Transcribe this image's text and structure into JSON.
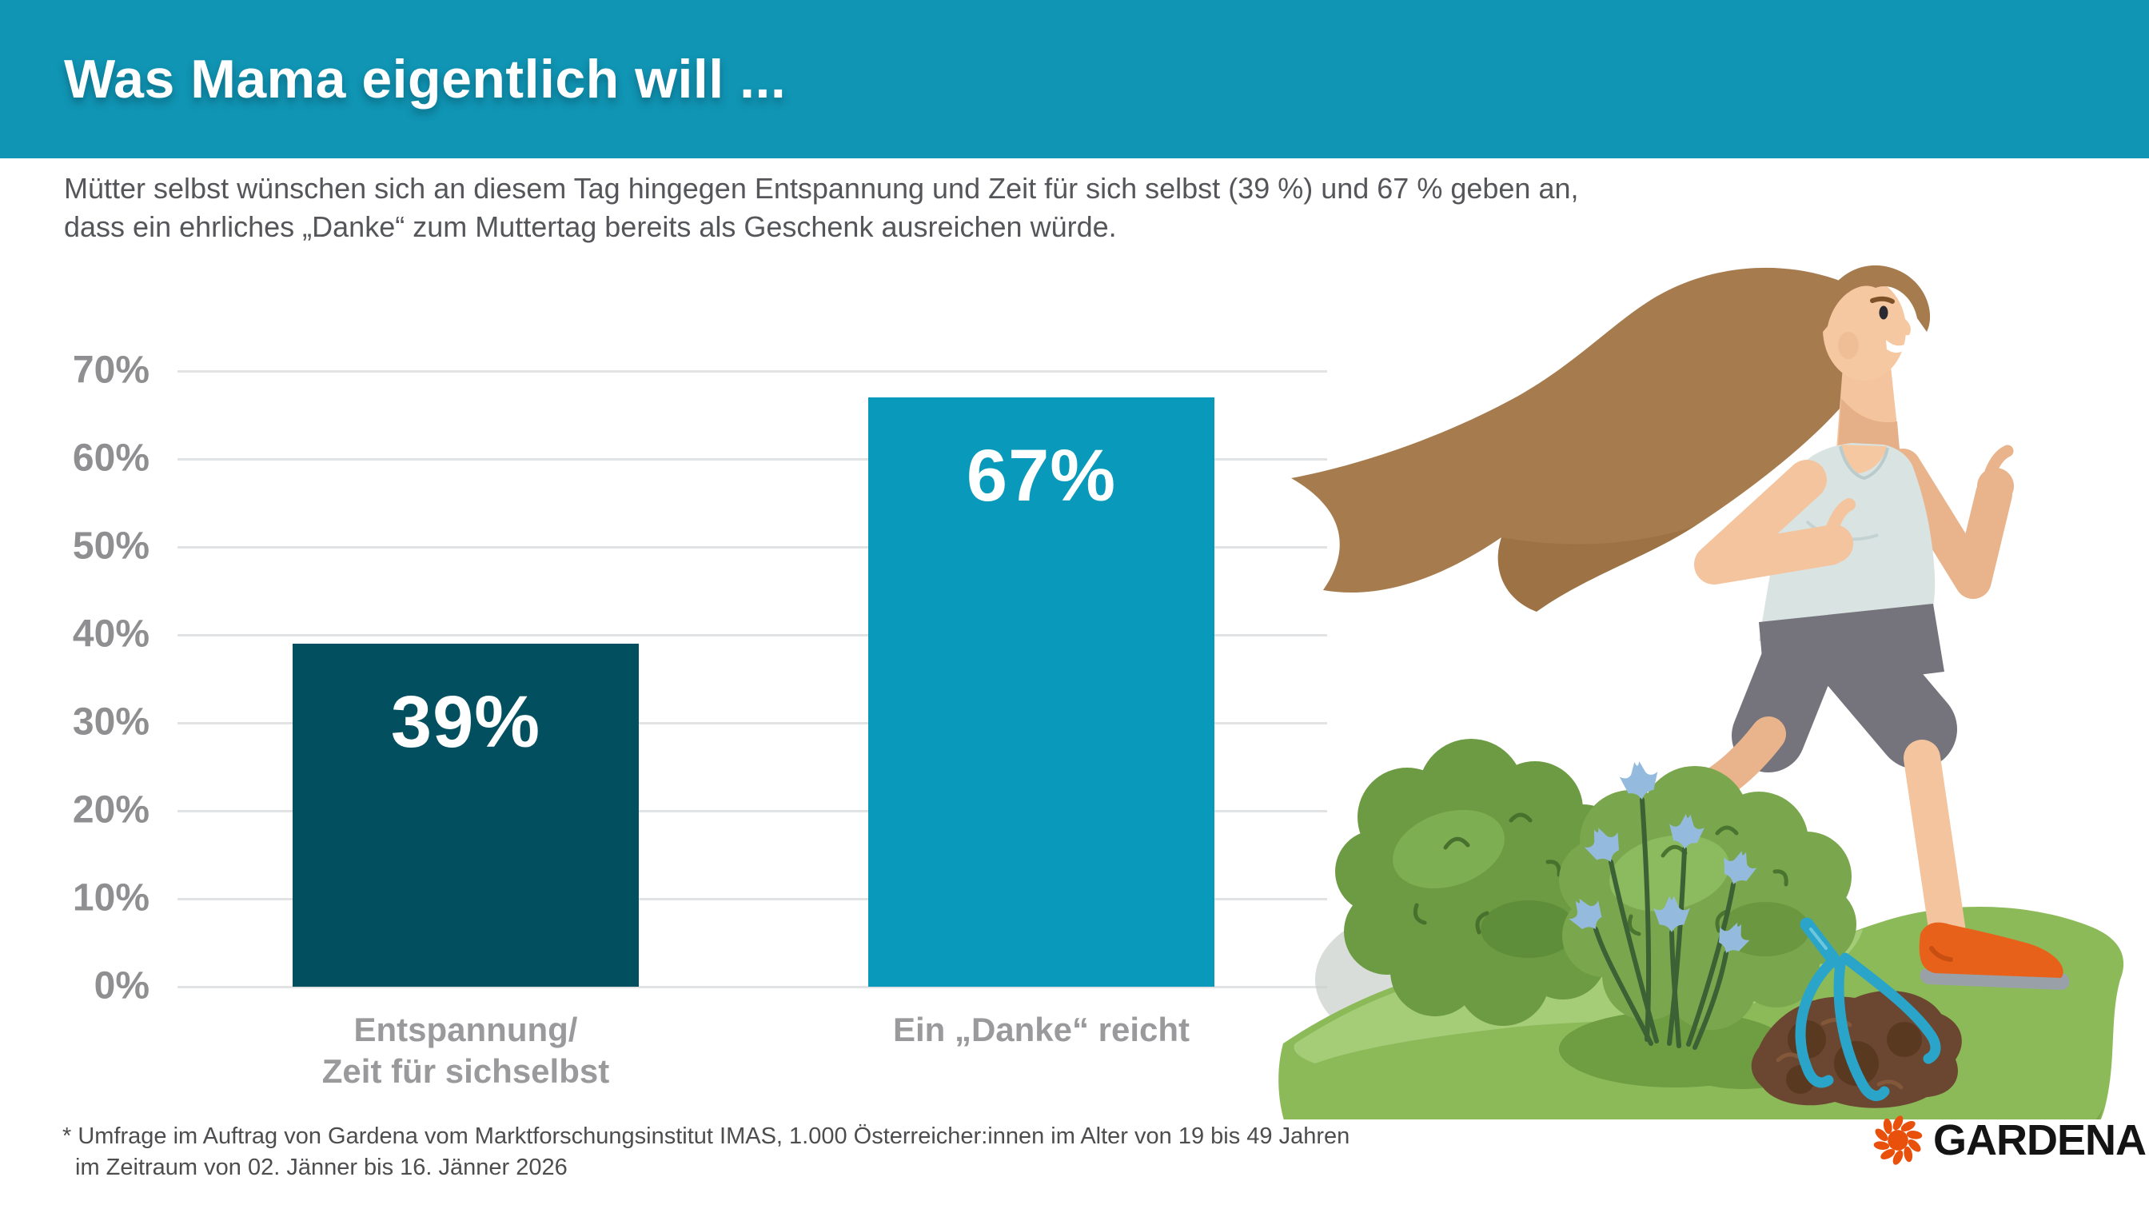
{
  "header": {
    "title": "Was Mama eigentlich will ...",
    "background_color": "#1095B4"
  },
  "intro": {
    "lines": [
      "Mütter selbst wünschen sich an diesem Tag hingegen Entspannung und Zeit für sich selbst (39 %) und 67 % geben an,",
      "dass ein ehrliches „Danke“ zum Muttertag bereits als Geschenk ausreichen würde."
    ]
  },
  "chart_data": {
    "type": "bar",
    "categories": [
      "Entspannung/ Zeit für sichselbst",
      "Ein „Danke“ reicht"
    ],
    "category_lines": [
      [
        "Entspannung/",
        "Zeit für sichselbst"
      ],
      [
        "Ein „Danke“ reicht",
        ""
      ]
    ],
    "values": [
      39,
      67
    ],
    "value_labels": [
      "39%",
      "67%"
    ],
    "bar_colors": [
      "#02505F",
      "#0999BA"
    ],
    "title": "",
    "xlabel": "",
    "ylabel": "",
    "ylim": [
      0,
      70
    ],
    "ytick_labels": [
      "70%",
      "60%",
      "50%",
      "40%",
      "30%",
      "20%",
      "10%",
      "0%"
    ],
    "grid": true,
    "gridline_color": "#E2E3E4",
    "legend": false
  },
  "footnote": {
    "lines": [
      "* Umfrage im Auftrag von Gardena vom Marktforschungsinstitut IMAS, 1.000 Österreicher:innen im Alter von 19 bis 49 Jahren",
      "im Zeitraum von 02. Jänner bis 16. Jänner 2026"
    ]
  },
  "logo": {
    "wordmark": "GARDENA",
    "icon": "gardena-sun-icon",
    "icon_color": "#E8500C",
    "wordmark_color": "#141414"
  }
}
